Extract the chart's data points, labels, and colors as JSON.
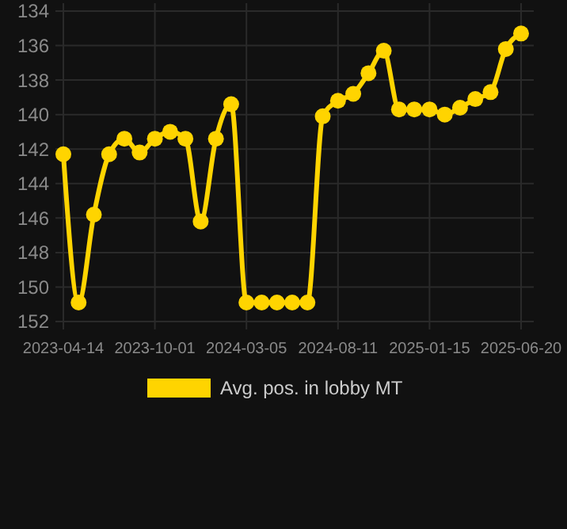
{
  "chart_data": {
    "type": "line",
    "categories": [
      "2023-04-14",
      null,
      null,
      null,
      null,
      null,
      "2023-10-01",
      null,
      null,
      null,
      null,
      null,
      "2024-03-05",
      null,
      null,
      null,
      null,
      null,
      "2024-08-11",
      null,
      null,
      null,
      null,
      null,
      "2025-01-15",
      null,
      null,
      null,
      null,
      null,
      "2025-06-20"
    ],
    "series": [
      {
        "name": "Avg. pos. in lobby MT",
        "color": "#ffd400",
        "values": [
          142.3,
          150.9,
          145.8,
          142.3,
          141.4,
          142.2,
          141.4,
          141.0,
          141.4,
          146.2,
          141.4,
          139.4,
          150.9,
          150.9,
          150.9,
          150.9,
          150.9,
          140.1,
          139.2,
          138.8,
          137.6,
          136.3,
          139.7,
          139.7,
          139.7,
          140.0,
          139.6,
          139.1,
          138.7,
          136.2,
          135.3
        ]
      }
    ],
    "ylim": [
      152,
      134
    ],
    "yticks": [
      134,
      136,
      138,
      140,
      142,
      144,
      146,
      148,
      150,
      152
    ],
    "grid": true,
    "legend": "bottom",
    "marker": "circle",
    "line_style": "solid"
  }
}
